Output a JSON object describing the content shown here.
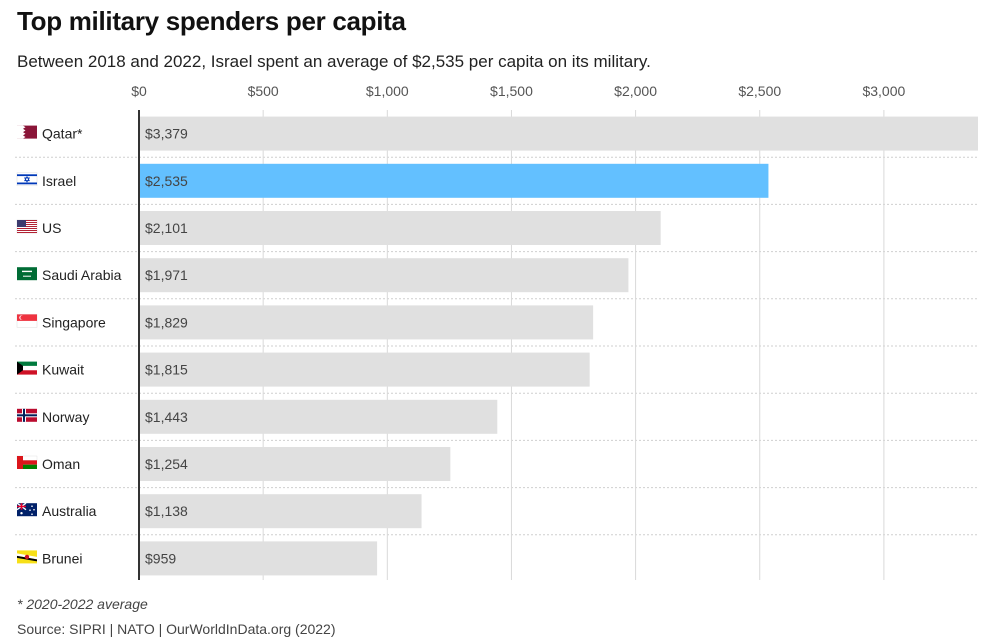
{
  "header": {
    "title": "Top military spenders per capita",
    "subtitle": "Between 2018 and 2022, Israel spent an average of $2,535 per capita on its military."
  },
  "footer": {
    "note": "* 2020-2022 average",
    "source": "Source: SIPRI | NATO | OurWorldInData.org (2022)"
  },
  "colors": {
    "bar": "#e0e0e0",
    "highlight": "#63c0ff",
    "grid": "#d9d9d9",
    "axis": "#333333"
  },
  "chart_data": {
    "type": "bar",
    "orientation": "horizontal",
    "title": "Top military spenders per capita",
    "xlabel": "",
    "ylabel": "",
    "xlim": [
      0,
      3379
    ],
    "x_ticks": [
      0,
      500,
      1000,
      1500,
      2000,
      2500,
      3000
    ],
    "x_tick_labels": [
      "$0",
      "$500",
      "$1,000",
      "$1,500",
      "$2,000",
      "$2,500",
      "$3,000"
    ],
    "categories": [
      "Qatar*",
      "Israel",
      "US",
      "Saudi Arabia",
      "Singapore",
      "Kuwait",
      "Norway",
      "Oman",
      "Australia",
      "Brunei"
    ],
    "values": [
      3379,
      2535,
      2101,
      1971,
      1829,
      1815,
      1443,
      1254,
      1138,
      959
    ],
    "value_labels": [
      "$3,379",
      "$2,535",
      "$2,101",
      "$1,971",
      "$1,829",
      "$1,815",
      "$1,443",
      "$1,254",
      "$1,138",
      "$959"
    ],
    "flags": [
      "qatar-flag-icon",
      "israel-flag-icon",
      "us-flag-icon",
      "saudi-arabia-flag-icon",
      "singapore-flag-icon",
      "kuwait-flag-icon",
      "norway-flag-icon",
      "oman-flag-icon",
      "australia-flag-icon",
      "brunei-flag-icon"
    ],
    "highlighted": "Israel"
  }
}
